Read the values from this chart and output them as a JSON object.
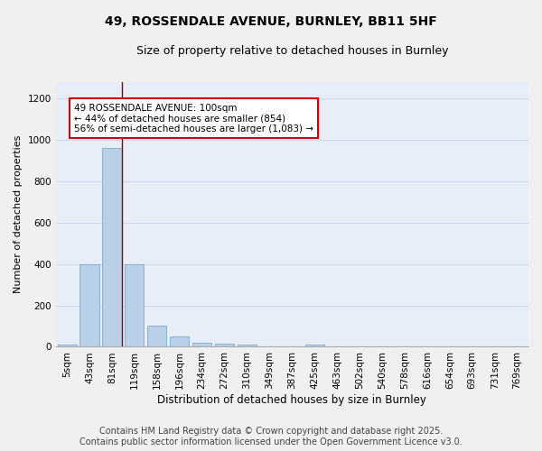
{
  "title": "49, ROSSENDALE AVENUE, BURNLEY, BB11 5HF",
  "subtitle": "Size of property relative to detached houses in Burnley",
  "xlabel": "Distribution of detached houses by size in Burnley",
  "ylabel": "Number of detached properties",
  "categories": [
    "5sqm",
    "43sqm",
    "81sqm",
    "119sqm",
    "158sqm",
    "196sqm",
    "234sqm",
    "272sqm",
    "310sqm",
    "349sqm",
    "387sqm",
    "425sqm",
    "463sqm",
    "502sqm",
    "540sqm",
    "578sqm",
    "616sqm",
    "654sqm",
    "693sqm",
    "731sqm",
    "769sqm"
  ],
  "values": [
    10,
    400,
    960,
    400,
    100,
    50,
    20,
    15,
    10,
    0,
    0,
    10,
    0,
    0,
    0,
    0,
    0,
    0,
    0,
    0,
    0
  ],
  "bar_color": "#bad0e8",
  "bar_edge_color": "#7aacd4",
  "bar_linewidth": 0.6,
  "red_line_x": 2.45,
  "annotation_text": "49 ROSSENDALE AVENUE: 100sqm\n← 44% of detached houses are smaller (854)\n56% of semi-detached houses are larger (1,083) →",
  "annotation_box_color": "#ffffff",
  "annotation_box_edge": "#cc0000",
  "ylim": [
    0,
    1280
  ],
  "yticks": [
    0,
    200,
    400,
    600,
    800,
    1000,
    1200
  ],
  "background_color": "#e8eef8",
  "grid_color": "#d0d8e8",
  "fig_bg_color": "#f0f0f0",
  "footer_line1": "Contains HM Land Registry data © Crown copyright and database right 2025.",
  "footer_line2": "Contains public sector information licensed under the Open Government Licence v3.0.",
  "title_fontsize": 10,
  "subtitle_fontsize": 9,
  "xlabel_fontsize": 8.5,
  "ylabel_fontsize": 8,
  "tick_fontsize": 7.5,
  "annot_fontsize": 7.5,
  "footer_fontsize": 7
}
